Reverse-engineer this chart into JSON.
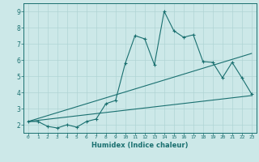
{
  "xlabel": "Humidex (Indice chaleur)",
  "background_color": "#cce8e8",
  "grid_color": "#b0d4d4",
  "line_color": "#1a7070",
  "xlim": [
    -0.5,
    23.5
  ],
  "ylim": [
    1.5,
    9.5
  ],
  "yticks": [
    2,
    3,
    4,
    5,
    6,
    7,
    8,
    9
  ],
  "xticks": [
    0,
    1,
    2,
    3,
    4,
    5,
    6,
    7,
    8,
    9,
    10,
    11,
    12,
    13,
    14,
    15,
    16,
    17,
    18,
    19,
    20,
    21,
    22,
    23
  ],
  "line1_x": [
    0,
    1,
    2,
    3,
    4,
    5,
    6,
    7,
    8,
    9,
    10,
    11,
    12,
    13,
    14,
    15,
    16,
    17,
    18,
    19,
    20,
    21,
    22,
    23
  ],
  "line1_y": [
    2.2,
    2.2,
    1.9,
    1.8,
    2.0,
    1.85,
    2.2,
    2.35,
    3.3,
    3.5,
    5.8,
    7.5,
    7.3,
    5.7,
    9.0,
    7.8,
    7.4,
    7.55,
    5.9,
    5.85,
    4.9,
    5.85,
    4.9,
    3.9
  ],
  "line2_x": [
    0,
    23
  ],
  "line2_y": [
    2.2,
    6.4
  ],
  "line3_x": [
    0,
    23
  ],
  "line3_y": [
    2.2,
    3.8
  ]
}
